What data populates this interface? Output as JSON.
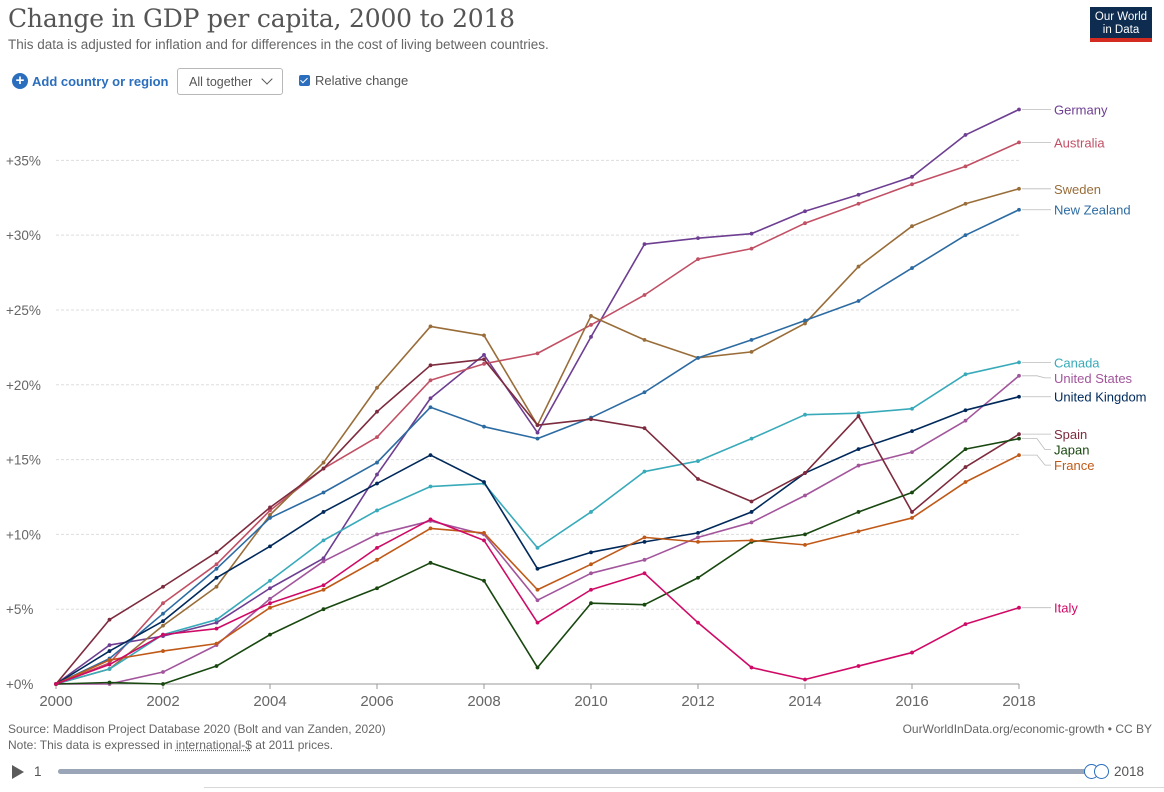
{
  "header": {
    "title": "Change in GDP per capita, 2000 to 2018",
    "subtitle": "This data is adjusted for inflation and for differences in the cost of living between countries.",
    "logo_line1": "Our World",
    "logo_line2": "in Data"
  },
  "controls": {
    "add_label": "Add country or region",
    "select_value": "All together",
    "relative_label": "Relative change",
    "relative_checked": true
  },
  "footer": {
    "source": "Source: Maddison Project Database 2020 (Bolt and van Zanden, 2020)",
    "note_prefix": "Note: This data is expressed in ",
    "note_link": "international-$",
    "note_suffix": " at 2011 prices.",
    "url": "OurWorldInData.org/economic-growth • CC BY"
  },
  "timeline": {
    "start_label": "1",
    "end_label": "2018",
    "position": 1.0
  },
  "chart_data": {
    "type": "line",
    "title": "Change in GDP per capita, 2000 to 2018",
    "x": [
      2000,
      2001,
      2002,
      2003,
      2004,
      2005,
      2006,
      2007,
      2008,
      2009,
      2010,
      2011,
      2012,
      2013,
      2014,
      2015,
      2016,
      2017,
      2018
    ],
    "xticks": [
      2000,
      2002,
      2004,
      2006,
      2008,
      2010,
      2012,
      2014,
      2016,
      2018
    ],
    "xtick_labels": [
      "2000",
      "2002",
      "2004",
      "2006",
      "2008",
      "2010",
      "2012",
      "2014",
      "2016",
      "2018"
    ],
    "yticks": [
      0,
      5,
      10,
      15,
      20,
      25,
      30,
      35
    ],
    "ytick_labels": [
      "+0%",
      "+5%",
      "+10%",
      "+15%",
      "+20%",
      "+25%",
      "+30%",
      "+35%"
    ],
    "ylim": [
      0,
      38.5
    ],
    "xlim": [
      2000,
      2018
    ],
    "grid": "horizontal dashed",
    "legend": "right, labels at line ends",
    "series": [
      {
        "name": "Germany",
        "color": "#6d3e91",
        "values": [
          0,
          2.6,
          3.2,
          4.1,
          6.4,
          8.4,
          14.0,
          19.1,
          22.0,
          16.8,
          23.2,
          29.4,
          29.8,
          30.1,
          31.6,
          32.7,
          33.9,
          36.7,
          38.4
        ]
      },
      {
        "name": "Australia",
        "color": "#c15065",
        "values": [
          0,
          1.4,
          5.4,
          8.0,
          11.6,
          14.4,
          16.5,
          20.3,
          21.4,
          22.1,
          24.0,
          26.0,
          28.4,
          29.1,
          30.8,
          32.1,
          33.4,
          34.6,
          36.2
        ]
      },
      {
        "name": "Sweden",
        "color": "#996d39",
        "values": [
          0,
          1.0,
          3.9,
          6.5,
          11.3,
          14.8,
          19.8,
          23.9,
          23.3,
          17.3,
          24.6,
          23.0,
          21.8,
          22.2,
          24.1,
          27.9,
          30.6,
          32.1,
          33.1
        ]
      },
      {
        "name": "New Zealand",
        "color": "#2c6ba2",
        "values": [
          0,
          1.7,
          4.7,
          7.7,
          11.1,
          12.8,
          14.8,
          18.5,
          17.2,
          16.4,
          17.8,
          19.5,
          21.8,
          23.0,
          24.3,
          25.6,
          27.8,
          30.0,
          31.7
        ]
      },
      {
        "name": "Canada",
        "color": "#38aaba",
        "values": [
          0,
          1.0,
          3.3,
          4.3,
          6.9,
          9.6,
          11.6,
          13.2,
          13.4,
          9.1,
          11.5,
          14.2,
          14.9,
          16.4,
          18.0,
          18.1,
          18.4,
          20.7,
          21.5
        ]
      },
      {
        "name": "United States",
        "color": "#a2559c",
        "values": [
          0,
          0.0,
          0.8,
          2.6,
          5.7,
          8.2,
          10.0,
          10.9,
          10.0,
          5.6,
          7.4,
          8.3,
          9.8,
          10.8,
          12.6,
          14.6,
          15.5,
          17.6,
          20.6
        ]
      },
      {
        "name": "United Kingdom",
        "color": "#00295b",
        "values": [
          0,
          2.2,
          4.2,
          7.1,
          9.2,
          11.5,
          13.4,
          15.3,
          13.5,
          7.7,
          8.8,
          9.5,
          10.1,
          11.5,
          14.1,
          15.7,
          16.9,
          18.3,
          19.2
        ]
      },
      {
        "name": "Spain",
        "color": "#7d2b3e",
        "values": [
          0,
          4.3,
          6.5,
          8.8,
          11.8,
          14.4,
          18.2,
          21.3,
          21.7,
          17.3,
          17.7,
          17.1,
          13.7,
          12.2,
          14.1,
          17.9,
          11.5,
          14.5,
          16.7
        ]
      },
      {
        "name": "Japan",
        "color": "#18470f",
        "values": [
          0,
          0.1,
          0.0,
          1.2,
          3.3,
          5.0,
          6.4,
          8.1,
          6.9,
          1.1,
          5.4,
          5.3,
          7.1,
          9.5,
          10.0,
          11.5,
          12.8,
          15.7,
          16.4
        ]
      },
      {
        "name": "France",
        "color": "#c05917",
        "values": [
          0,
          1.6,
          2.2,
          2.7,
          5.1,
          6.3,
          8.3,
          10.4,
          10.1,
          6.3,
          8.0,
          9.8,
          9.5,
          9.6,
          9.3,
          10.2,
          11.1,
          13.5,
          15.3
        ]
      },
      {
        "name": "Italy",
        "color": "#cf0a66",
        "values": [
          0,
          1.3,
          3.3,
          3.7,
          5.4,
          6.6,
          9.1,
          11.0,
          9.6,
          4.1,
          6.3,
          7.4,
          4.1,
          1.1,
          0.3,
          1.2,
          2.1,
          4.0,
          5.1
        ]
      }
    ]
  }
}
